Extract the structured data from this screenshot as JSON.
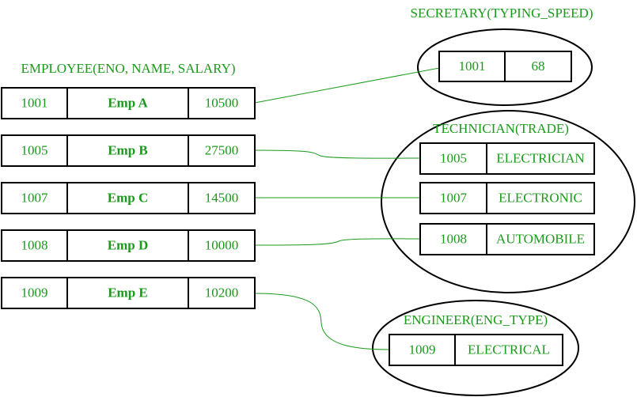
{
  "employee": {
    "title": "EMPLOYEE(ENO, NAME, SALARY)",
    "rows": [
      [
        "1001",
        "Emp A",
        "10500"
      ],
      [
        "1005",
        "Emp B",
        "27500"
      ],
      [
        "1007",
        "Emp C",
        "14500"
      ],
      [
        "1008",
        "Emp D",
        "10000"
      ],
      [
        "1009",
        "Emp E",
        "10200"
      ]
    ]
  },
  "secretary": {
    "title": "SECRETARY(TYPING_SPEED)",
    "rows": [
      [
        "1001",
        "68"
      ]
    ]
  },
  "technician": {
    "title": "TECHNICIAN(TRADE)",
    "rows": [
      [
        "1005",
        "ELECTRICIAN"
      ],
      [
        "1007",
        "ELECTRONIC"
      ],
      [
        "1008",
        "AUTOMOBILE"
      ]
    ]
  },
  "engineer": {
    "title": "ENGINEER(ENG_TYPE)",
    "rows": [
      [
        "1009",
        "ELECTRICAL"
      ]
    ]
  }
}
